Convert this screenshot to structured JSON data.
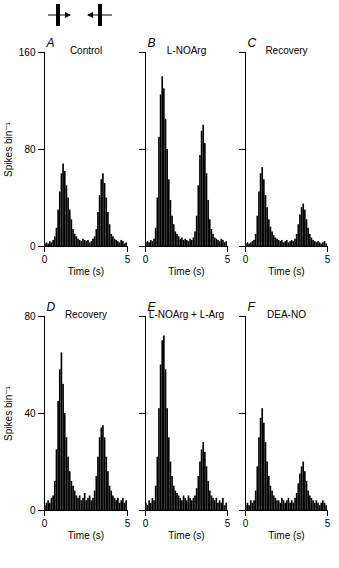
{
  "chart_data": [
    {
      "type": "histogram",
      "panel_label": "A",
      "title": "Control",
      "x_label": "Time (s)",
      "y_label": "Spikes bin⁻¹",
      "color": "#000000",
      "bins": [
        0,
        0.1,
        0.2,
        0.3,
        0.4,
        0.5,
        0.6,
        0.7,
        0.8,
        0.9,
        1,
        1.1,
        1.2,
        1.3,
        1.4,
        1.5,
        1.6,
        1.7,
        1.8,
        1.9,
        2,
        2.1,
        2.2,
        2.3,
        2.4,
        2.5,
        2.6,
        2.7,
        2.8,
        2.9,
        3,
        3.1,
        3.2,
        3.3,
        3.4,
        3.5,
        3.6,
        3.7,
        3.8,
        3.9,
        4,
        4.1,
        4.2,
        4.3,
        4.4,
        4.5,
        4.6,
        4.7,
        4.8,
        4.9,
        5
      ],
      "values": [
        2,
        3,
        2,
        4,
        3,
        5,
        8,
        15,
        30,
        45,
        60,
        68,
        62,
        50,
        40,
        30,
        22,
        14,
        10,
        8,
        6,
        5,
        4,
        6,
        5,
        4,
        5,
        3,
        4,
        6,
        8,
        14,
        28,
        42,
        55,
        60,
        52,
        40,
        28,
        18,
        10,
        8,
        6,
        5,
        4,
        3,
        5,
        4,
        2,
        3
      ],
      "xlim": [
        0,
        5
      ],
      "xticks": [
        0,
        5
      ],
      "ylim": [
        0,
        160
      ],
      "yticks": [
        0,
        80,
        160
      ]
    },
    {
      "type": "histogram",
      "panel_label": "B",
      "title": "L-NOArg",
      "x_label": "Time (s)",
      "color": "#000000",
      "tick_labels": "x",
      "bins": [
        0,
        0.1,
        0.2,
        0.3,
        0.4,
        0.5,
        0.6,
        0.7,
        0.8,
        0.9,
        1,
        1.1,
        1.2,
        1.3,
        1.4,
        1.5,
        1.6,
        1.7,
        1.8,
        1.9,
        2,
        2.1,
        2.2,
        2.3,
        2.4,
        2.5,
        2.6,
        2.7,
        2.8,
        2.9,
        3,
        3.1,
        3.2,
        3.3,
        3.4,
        3.5,
        3.6,
        3.7,
        3.8,
        3.9,
        4,
        4.1,
        4.2,
        4.3,
        4.4,
        4.5,
        4.6,
        4.7,
        4.8,
        4.9,
        5
      ],
      "values": [
        3,
        4,
        3,
        5,
        4,
        6,
        15,
        40,
        90,
        125,
        140,
        130,
        105,
        80,
        55,
        38,
        25,
        18,
        12,
        10,
        8,
        6,
        7,
        5,
        6,
        5,
        4,
        6,
        5,
        7,
        12,
        25,
        50,
        75,
        95,
        100,
        85,
        60,
        38,
        22,
        14,
        10,
        7,
        6,
        5,
        4,
        6,
        5,
        3,
        4
      ],
      "xlim": [
        0,
        5
      ],
      "xticks": [
        0,
        5
      ],
      "ylim": [
        0,
        160
      ],
      "yticks": [
        0,
        80,
        160
      ]
    },
    {
      "type": "histogram",
      "panel_label": "C",
      "title": "Recovery",
      "x_label": "Time (s)",
      "color": "#000000",
      "tick_labels": "x",
      "bins": [
        0,
        0.1,
        0.2,
        0.3,
        0.4,
        0.5,
        0.6,
        0.7,
        0.8,
        0.9,
        1,
        1.1,
        1.2,
        1.3,
        1.4,
        1.5,
        1.6,
        1.7,
        1.8,
        1.9,
        2,
        2.1,
        2.2,
        2.3,
        2.4,
        2.5,
        2.6,
        2.7,
        2.8,
        2.9,
        3,
        3.1,
        3.2,
        3.3,
        3.4,
        3.5,
        3.6,
        3.7,
        3.8,
        3.9,
        4,
        4.1,
        4.2,
        4.3,
        4.4,
        4.5,
        4.6,
        4.7,
        4.8,
        4.9,
        5
      ],
      "values": [
        2,
        3,
        2,
        3,
        4,
        5,
        10,
        25,
        45,
        60,
        65,
        55,
        42,
        32,
        22,
        16,
        12,
        9,
        7,
        6,
        5,
        4,
        5,
        3,
        4,
        5,
        3,
        4,
        5,
        4,
        6,
        10,
        18,
        26,
        32,
        35,
        30,
        22,
        15,
        10,
        7,
        5,
        4,
        3,
        4,
        3,
        2,
        3,
        4,
        2
      ],
      "xlim": [
        0,
        5
      ],
      "xticks": [
        0,
        5
      ],
      "ylim": [
        0,
        160
      ],
      "yticks": [
        0,
        80,
        160
      ]
    },
    {
      "type": "histogram",
      "panel_label": "D",
      "title": "Recovery",
      "x_label": "Time (s)",
      "y_label": "Spikes bin⁻¹",
      "color": "#000000",
      "bins": [
        0,
        0.1,
        0.2,
        0.3,
        0.4,
        0.5,
        0.6,
        0.7,
        0.8,
        0.9,
        1,
        1.1,
        1.2,
        1.3,
        1.4,
        1.5,
        1.6,
        1.7,
        1.8,
        1.9,
        2,
        2.1,
        2.2,
        2.3,
        2.4,
        2.5,
        2.6,
        2.7,
        2.8,
        2.9,
        3,
        3.1,
        3.2,
        3.3,
        3.4,
        3.5,
        3.6,
        3.7,
        3.8,
        3.9,
        4,
        4.1,
        4.2,
        4.3,
        4.4,
        4.5,
        4.6,
        4.7,
        4.8,
        4.9,
        5
      ],
      "values": [
        2,
        3,
        4,
        3,
        5,
        6,
        12,
        25,
        45,
        58,
        65,
        52,
        40,
        30,
        22,
        16,
        12,
        10,
        8,
        6,
        5,
        6,
        4,
        5,
        7,
        4,
        5,
        6,
        4,
        5,
        8,
        14,
        22,
        30,
        34,
        35,
        30,
        22,
        16,
        10,
        8,
        6,
        5,
        4,
        5,
        3,
        4,
        5,
        3,
        4
      ],
      "xlim": [
        0,
        5
      ],
      "xticks": [
        0,
        5
      ],
      "ylim": [
        0,
        80
      ],
      "yticks": [
        0,
        40,
        80
      ]
    },
    {
      "type": "histogram",
      "panel_label": "E",
      "title": "L-NOArg + L-Arg",
      "x_label": "Time (s)",
      "color": "#000000",
      "tick_labels": "x",
      "bins": [
        0,
        0.1,
        0.2,
        0.3,
        0.4,
        0.5,
        0.6,
        0.7,
        0.8,
        0.9,
        1,
        1.1,
        1.2,
        1.3,
        1.4,
        1.5,
        1.6,
        1.7,
        1.8,
        1.9,
        2,
        2.1,
        2.2,
        2.3,
        2.4,
        2.5,
        2.6,
        2.7,
        2.8,
        2.9,
        3,
        3.1,
        3.2,
        3.3,
        3.4,
        3.5,
        3.6,
        3.7,
        3.8,
        3.9,
        4,
        4.1,
        4.2,
        4.3,
        4.4,
        4.5,
        4.6,
        4.7,
        4.8,
        4.9,
        5
      ],
      "values": [
        3,
        2,
        4,
        3,
        5,
        4,
        10,
        22,
        42,
        60,
        70,
        72,
        58,
        42,
        30,
        20,
        14,
        10,
        8,
        7,
        6,
        5,
        4,
        6,
        5,
        4,
        6,
        5,
        4,
        5,
        6,
        9,
        14,
        20,
        25,
        28,
        24,
        18,
        12,
        8,
        6,
        5,
        4,
        5,
        3,
        4,
        3,
        5,
        2,
        3
      ],
      "xlim": [
        0,
        5
      ],
      "xticks": [
        0,
        5
      ],
      "ylim": [
        0,
        80
      ],
      "yticks": [
        0,
        40,
        80
      ]
    },
    {
      "type": "histogram",
      "panel_label": "F",
      "title": "DEA-NO",
      "x_label": "Time (s)",
      "color": "#000000",
      "tick_labels": "x",
      "bins": [
        0,
        0.1,
        0.2,
        0.3,
        0.4,
        0.5,
        0.6,
        0.7,
        0.8,
        0.9,
        1,
        1.1,
        1.2,
        1.3,
        1.4,
        1.5,
        1.6,
        1.7,
        1.8,
        1.9,
        2,
        2.1,
        2.2,
        2.3,
        2.4,
        2.5,
        2.6,
        2.7,
        2.8,
        2.9,
        3,
        3.1,
        3.2,
        3.3,
        3.4,
        3.5,
        3.6,
        3.7,
        3.8,
        3.9,
        4,
        4.1,
        4.2,
        4.3,
        4.4,
        4.5,
        4.6,
        4.7,
        4.8,
        4.9,
        5
      ],
      "values": [
        2,
        3,
        2,
        4,
        3,
        4,
        8,
        18,
        30,
        38,
        42,
        36,
        28,
        20,
        14,
        10,
        8,
        6,
        5,
        4,
        4,
        3,
        5,
        4,
        3,
        4,
        5,
        3,
        4,
        3,
        5,
        7,
        11,
        15,
        18,
        20,
        16,
        12,
        8,
        6,
        5,
        4,
        3,
        4,
        3,
        2,
        3,
        4,
        3,
        2
      ],
      "xlim": [
        0,
        5
      ],
      "xticks": [
        0,
        5
      ],
      "ylim": [
        0,
        80
      ],
      "yticks": [
        0,
        40,
        80
      ]
    }
  ]
}
